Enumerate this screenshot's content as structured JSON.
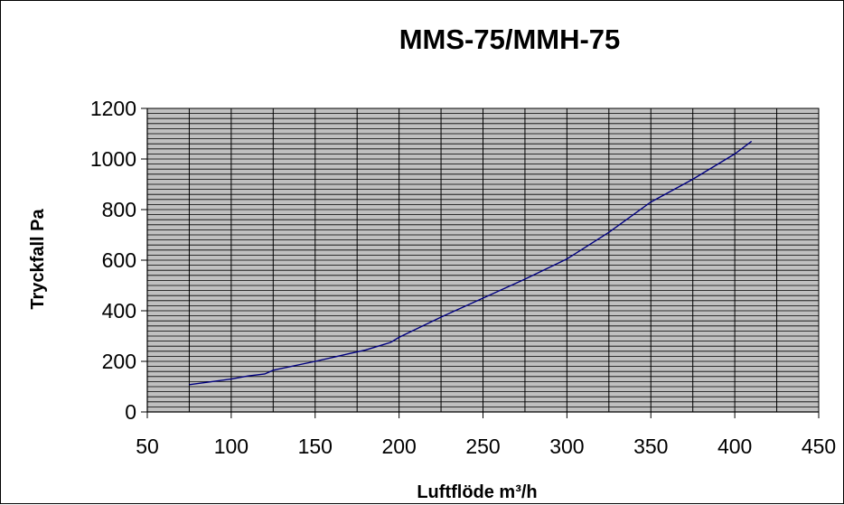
{
  "chart_data": {
    "type": "line",
    "title": "MMS-75/MMH-75",
    "xlabel": "Luftflöde m³/h",
    "ylabel": "Tryckfall Pa",
    "xlim": [
      50,
      450
    ],
    "ylim": [
      0,
      1200
    ],
    "xticks": [
      "50",
      "100",
      "150",
      "200",
      "250",
      "300",
      "350",
      "400",
      "450"
    ],
    "yticks": [
      "0",
      "200",
      "400",
      "600",
      "800",
      "1000",
      "1200"
    ],
    "grid": true,
    "legend": "none",
    "plot_background": "#c0c0c0",
    "grid_color": "#000000",
    "line_color": "#000080",
    "series": [
      {
        "x": [
          75,
          100,
          110,
          120,
          125,
          150,
          170,
          180,
          190,
          195,
          200,
          225,
          250,
          275,
          300,
          325,
          350,
          375,
          400,
          410
        ],
        "y": [
          108,
          130,
          142,
          150,
          165,
          200,
          230,
          245,
          265,
          275,
          295,
          375,
          450,
          525,
          605,
          710,
          830,
          920,
          1020,
          1070
        ]
      }
    ]
  }
}
